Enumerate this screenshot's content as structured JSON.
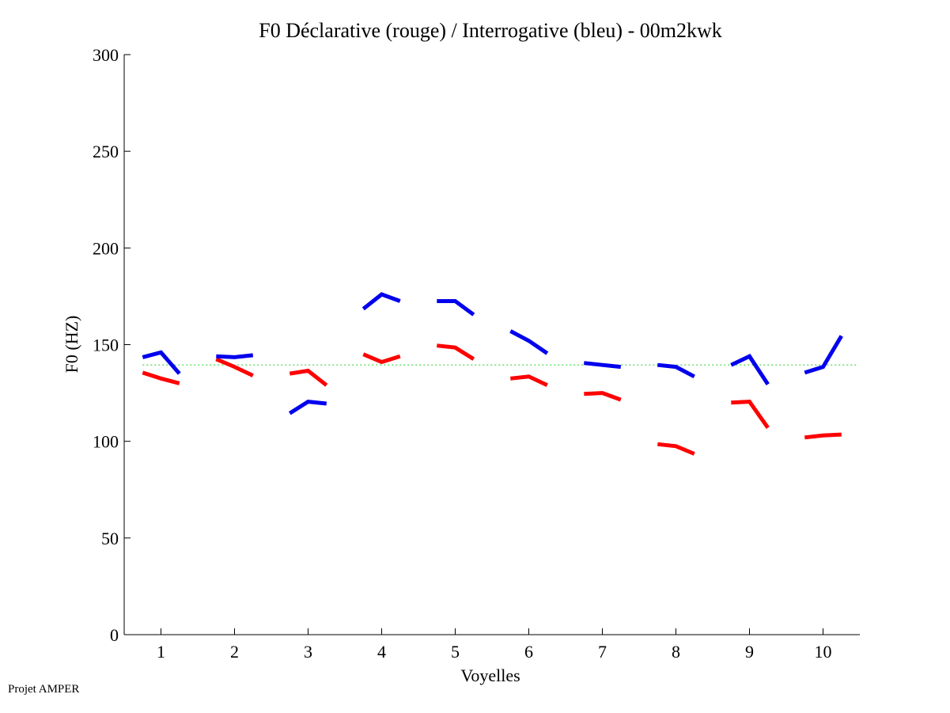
{
  "chart_data": {
    "type": "line",
    "title": "F0 Déclarative (rouge) / Interrogative (bleu) - 00m2kwk",
    "xlabel": "Voyelles",
    "ylabel": "F0 (HZ)",
    "xlim": [
      0.5,
      10.5
    ],
    "ylim": [
      0,
      300
    ],
    "xticks": [
      1,
      2,
      3,
      4,
      5,
      6,
      7,
      8,
      9,
      10
    ],
    "yticks": [
      0,
      50,
      100,
      150,
      200,
      250,
      300
    ],
    "grid": false,
    "reference_line": {
      "value": 139.5,
      "color": "#22cc22",
      "style": "dotted"
    },
    "series": [
      {
        "name": "Déclarative (rouge)",
        "color": "#ff0000",
        "segments": [
          {
            "x": [
              0.75,
              1.0,
              1.25
            ],
            "y": [
              135.5,
              132.5,
              130.0
            ]
          },
          {
            "x": [
              1.75,
              2.0,
              2.25
            ],
            "y": [
              142.5,
              138.5,
              134.0
            ]
          },
          {
            "x": [
              2.75,
              3.0,
              3.25
            ],
            "y": [
              135.0,
              136.5,
              129.0
            ]
          },
          {
            "x": [
              3.75,
              4.0,
              4.25
            ],
            "y": [
              145.0,
              141.0,
              144.0
            ]
          },
          {
            "x": [
              4.75,
              5.0,
              5.25
            ],
            "y": [
              149.5,
              148.5,
              142.5
            ]
          },
          {
            "x": [
              5.75,
              6.0,
              6.25
            ],
            "y": [
              132.5,
              133.5,
              129.0
            ]
          },
          {
            "x": [
              6.75,
              7.0,
              7.25
            ],
            "y": [
              124.5,
              125.0,
              121.5
            ]
          },
          {
            "x": [
              7.75,
              8.0,
              8.25
            ],
            "y": [
              98.5,
              97.5,
              93.5
            ]
          },
          {
            "x": [
              8.75,
              9.0,
              9.25
            ],
            "y": [
              120.0,
              120.5,
              107.0
            ]
          },
          {
            "x": [
              9.75,
              10.0,
              10.25
            ],
            "y": [
              102.0,
              103.0,
              103.5
            ]
          }
        ]
      },
      {
        "name": "Interrogative (bleu)",
        "color": "#0000ee",
        "segments": [
          {
            "x": [
              0.75,
              1.0,
              1.25
            ],
            "y": [
              143.5,
              146.0,
              135.0
            ]
          },
          {
            "x": [
              1.75,
              2.0,
              2.25
            ],
            "y": [
              144.0,
              143.5,
              144.5
            ]
          },
          {
            "x": [
              2.75,
              3.0,
              3.25
            ],
            "y": [
              114.5,
              120.5,
              119.5
            ]
          },
          {
            "x": [
              3.75,
              4.0,
              4.25
            ],
            "y": [
              168.5,
              176.0,
              172.5
            ]
          },
          {
            "x": [
              4.75,
              5.0,
              5.25
            ],
            "y": [
              172.5,
              172.5,
              165.5
            ]
          },
          {
            "x": [
              5.75,
              6.0,
              6.25
            ],
            "y": [
              157.0,
              152.0,
              145.5
            ]
          },
          {
            "x": [
              6.75,
              7.0,
              7.25
            ],
            "y": [
              140.5,
              139.5,
              138.5
            ]
          },
          {
            "x": [
              7.75,
              8.0,
              8.25
            ],
            "y": [
              139.5,
              138.5,
              133.5
            ]
          },
          {
            "x": [
              8.75,
              9.0,
              9.25
            ],
            "y": [
              139.5,
              144.0,
              129.5
            ]
          },
          {
            "x": [
              9.75,
              10.0,
              10.25
            ],
            "y": [
              135.5,
              138.5,
              154.5
            ]
          }
        ]
      }
    ]
  },
  "footer": {
    "text": "Projet AMPER"
  }
}
